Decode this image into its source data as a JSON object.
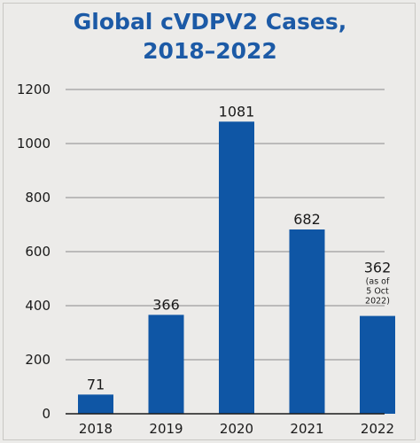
{
  "chart_data": {
    "type": "bar",
    "title_lines": [
      "Global cVDPV2 Cases,",
      "2018–2022"
    ],
    "categories": [
      "2018",
      "2019",
      "2020",
      "2021",
      "2022"
    ],
    "values": [
      71,
      366,
      1081,
      682,
      362
    ],
    "value_labels": [
      "71",
      "366",
      "1081",
      "682",
      "362"
    ],
    "annotations": [
      {
        "category": "2022",
        "lines": [
          "(as of",
          "5 Oct",
          "2022)"
        ]
      }
    ],
    "ylim": [
      0,
      1200
    ],
    "yticks": [
      "0",
      "200",
      "400",
      "600",
      "800",
      "1000",
      "1200"
    ],
    "xlabel": "",
    "ylabel": "",
    "grid": true,
    "bar_color": "#0f56a5",
    "title_color": "#1c5aa6"
  }
}
